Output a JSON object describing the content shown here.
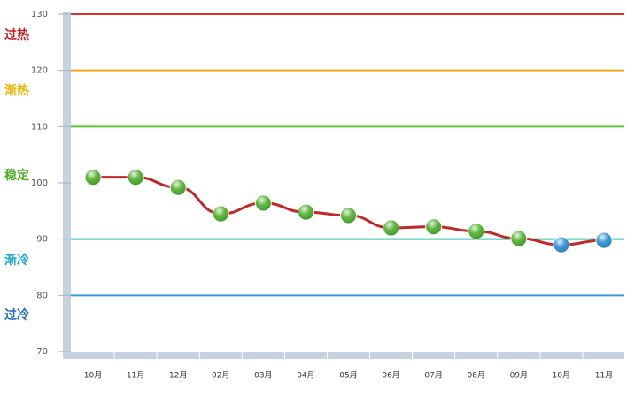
{
  "chart_data": {
    "type": "line",
    "categories": [
      "10月",
      "11月",
      "12月",
      "02月",
      "03月",
      "04月",
      "05月",
      "06月",
      "07月",
      "08月",
      "09月",
      "10月",
      "11月"
    ],
    "series": [
      {
        "values": [
          101,
          101,
          99.2,
          94.5,
          96.4,
          94.8,
          94.2,
          92,
          92.2,
          91.4,
          90.1,
          89,
          89.8
        ],
        "color": "#c0282a",
        "point_colors": [
          "#4caf2a",
          "#4caf2a",
          "#4caf2a",
          "#4caf2a",
          "#4caf2a",
          "#4caf2a",
          "#4caf2a",
          "#4caf2a",
          "#4caf2a",
          "#4caf2a",
          "#4caf2a",
          "#2a8fd4",
          "#2a8fd4"
        ]
      }
    ],
    "ylim": [
      70,
      130
    ],
    "yticks": [
      70,
      80,
      90,
      100,
      110,
      120,
      130
    ],
    "thresholds": [
      {
        "value": 130,
        "color": "#e03030"
      },
      {
        "value": 120,
        "color": "#f5a623"
      },
      {
        "value": 110,
        "color": "#5cc837"
      },
      {
        "value": 90,
        "color": "#2fc6b0"
      },
      {
        "value": 80,
        "color": "#3a9ad9"
      }
    ],
    "zones": [
      {
        "label": "过热",
        "color": "#c81e1e"
      },
      {
        "label": "渐热",
        "color": "#f0b400"
      },
      {
        "label": "稳定",
        "color": "#4caf2a"
      },
      {
        "label": "渐冷",
        "color": "#1fa6d8"
      },
      {
        "label": "过冷",
        "color": "#1f6fbf"
      }
    ]
  }
}
